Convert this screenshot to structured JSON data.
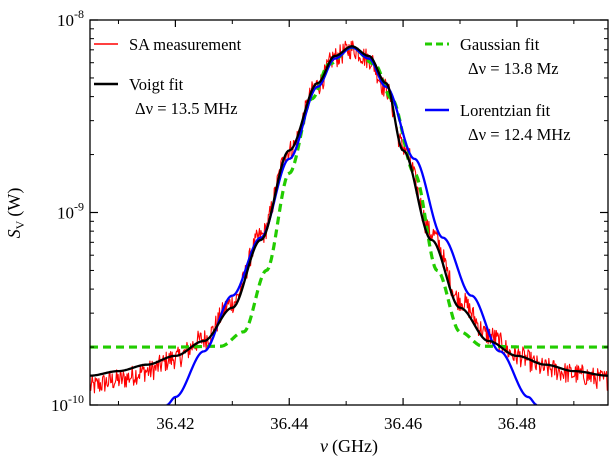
{
  "chart_data": {
    "type": "line",
    "title": "",
    "xlabel": "ν (GHz)",
    "ylabel": "Sᵥ (W)",
    "ylabel_main": "S",
    "ylabel_sub": "V",
    "ylabel_unit": "(W)",
    "xlabel_symbol": "ν",
    "xlabel_unit": "(GHz)",
    "xlim": [
      36.405,
      36.496
    ],
    "ylim": [
      1e-10,
      1e-08
    ],
    "yscale": "log",
    "grid": false,
    "x_ticks": [
      36.42,
      36.44,
      36.46,
      36.48
    ],
    "x_tick_labels": [
      "36.42",
      "36.44",
      "36.46",
      "36.48"
    ],
    "y_ticks": [
      1e-10,
      1e-09,
      1e-08
    ],
    "y_tick_labels": [
      {
        "base": "10",
        "exp": "-10"
      },
      {
        "base": "10",
        "exp": "-9"
      },
      {
        "base": "10",
        "exp": "-8"
      }
    ],
    "series": [
      {
        "name": "SA measurement",
        "color": "#ff0000",
        "style": "noisy-line",
        "x": [
          36.405,
          36.41,
          36.415,
          36.42,
          36.425,
          36.43,
          36.435,
          36.44,
          36.445,
          36.448,
          36.451,
          36.454,
          36.457,
          36.46,
          36.465,
          36.47,
          36.475,
          36.48,
          36.485,
          36.49,
          36.496
        ],
        "y": [
          1.25e-10,
          1.35e-10,
          1.5e-10,
          1.75e-10,
          2.2e-10,
          3.4e-10,
          7.5e-10,
          2.1e-09,
          4.6e-09,
          6.4e-09,
          7.1e-09,
          6.3e-09,
          4.4e-09,
          2.2e-09,
          7.8e-10,
          3.5e-10,
          2.3e-10,
          1.8e-10,
          1.55e-10,
          1.45e-10,
          1.35e-10
        ]
      },
      {
        "name": "Voigt fit",
        "annotation": "Δν = 13.5 MHz",
        "color": "#000000",
        "style": "solid",
        "x": [
          36.405,
          36.41,
          36.415,
          36.42,
          36.425,
          36.43,
          36.435,
          36.44,
          36.445,
          36.448,
          36.451,
          36.454,
          36.457,
          36.46,
          36.465,
          36.47,
          36.475,
          36.48,
          36.485,
          36.49,
          36.496
        ],
        "y": [
          1.42e-10,
          1.5e-10,
          1.62e-10,
          1.8e-10,
          2.15e-10,
          3.2e-10,
          7.2e-10,
          2.1e-09,
          4.7e-09,
          6.5e-09,
          7.3e-09,
          6.5e-09,
          4.7e-09,
          2.1e-09,
          7.2e-10,
          3.2e-10,
          2.15e-10,
          1.8e-10,
          1.62e-10,
          1.5e-10,
          1.42e-10
        ]
      },
      {
        "name": "Gaussian fit",
        "annotation": "Δν = 13.8 Mz",
        "color": "#22cc00",
        "style": "dashed",
        "x": [
          36.405,
          36.42,
          36.428,
          36.432,
          36.436,
          36.44,
          36.444,
          36.447,
          36.451,
          36.455,
          36.458,
          36.462,
          36.466,
          36.47,
          36.474,
          36.482,
          36.496
        ],
        "y": [
          2e-10,
          2e-10,
          2.02e-10,
          2.4e-10,
          5e-10,
          1.6e-09,
          3.9e-09,
          5.9e-09,
          7.2e-09,
          5.9e-09,
          3.9e-09,
          1.6e-09,
          5e-10,
          2.4e-10,
          2.02e-10,
          2e-10,
          2e-10
        ]
      },
      {
        "name": "Lorentzian fit",
        "annotation": "Δν = 12.4 MHz",
        "color": "#0000ff",
        "style": "solid",
        "x": [
          36.4185,
          36.42,
          36.425,
          36.43,
          36.435,
          36.44,
          36.445,
          36.448,
          36.451,
          36.454,
          36.457,
          36.462,
          36.467,
          36.472,
          36.477,
          36.482,
          36.4835
        ],
        "y": [
          1e-10,
          1.1e-10,
          1.9e-10,
          3.7e-10,
          7.4e-10,
          1.9e-09,
          4.5e-09,
          6.3e-09,
          7.2e-09,
          6.3e-09,
          4.5e-09,
          1.9e-09,
          7.4e-10,
          3.7e-10,
          1.9e-10,
          1.1e-10,
          1e-10
        ]
      }
    ]
  }
}
